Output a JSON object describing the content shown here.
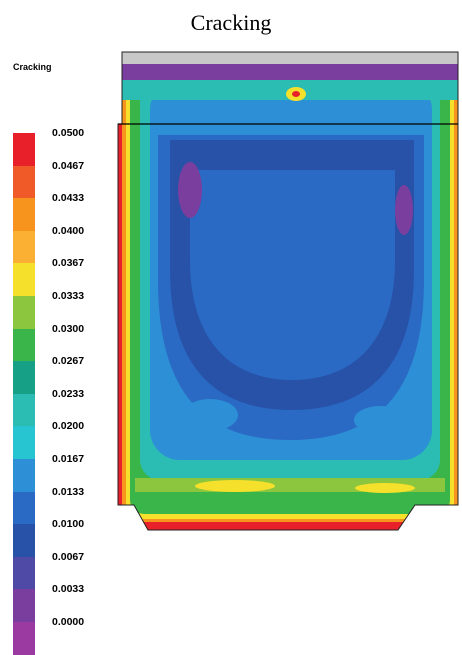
{
  "header": {
    "title": "Cracking"
  },
  "plot": {
    "label": "Cracking"
  },
  "legend": {
    "items": [
      {
        "value": "0.0500",
        "color": "#e8202a"
      },
      {
        "value": "0.0467",
        "color": "#f05a28"
      },
      {
        "value": "0.0433",
        "color": "#f7941d"
      },
      {
        "value": "0.0400",
        "color": "#fbb034"
      },
      {
        "value": "0.0367",
        "color": "#f5e02b"
      },
      {
        "value": "0.0333",
        "color": "#8cc63f"
      },
      {
        "value": "0.0300",
        "color": "#39b54a"
      },
      {
        "value": "0.0267",
        "color": "#16a085"
      },
      {
        "value": "0.0233",
        "color": "#2bbcb3"
      },
      {
        "value": "0.0200",
        "color": "#27c5d1"
      },
      {
        "value": "0.0167",
        "color": "#2d8fd6"
      },
      {
        "value": "0.0133",
        "color": "#2a6ac4"
      },
      {
        "value": "0.0100",
        "color": "#2752a8"
      },
      {
        "value": "0.0067",
        "color": "#4f4aa6"
      },
      {
        "value": "0.0033",
        "color": "#7a3f9e"
      },
      {
        "value": "0.0000",
        "color": "#9b3aa0"
      }
    ]
  }
}
